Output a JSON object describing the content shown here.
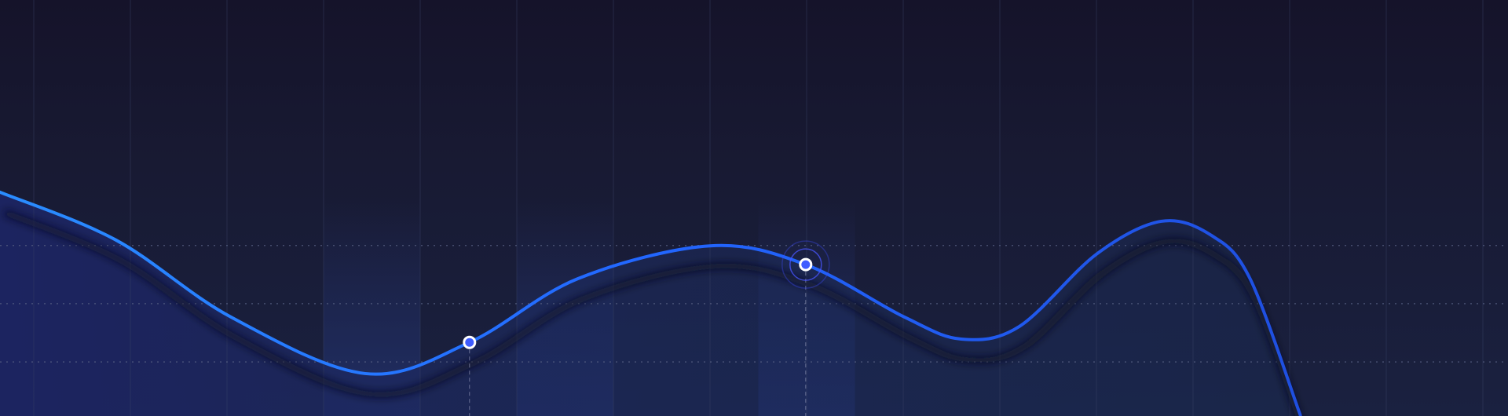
{
  "chart_data": {
    "type": "area",
    "title": "",
    "xlabel": "",
    "ylabel": "",
    "xlim": [
      0,
      15.6
    ],
    "ylim": [
      0,
      100
    ],
    "grid": {
      "vertical": true,
      "horizontal_dotted": true
    },
    "horizontal_gridlines": [
      41,
      27,
      13
    ],
    "highlight_bands": [
      [
        3,
        4
      ],
      [
        5,
        6
      ],
      [
        7.5,
        8.5
      ]
    ],
    "series": [
      {
        "x": [
          0,
          1.2,
          2.39,
          3.78,
          4.86,
          5.98,
          7.35,
          8.34,
          9.36,
          9.95,
          10.55,
          11.35,
          12.02,
          12.54,
          12.94,
          13.46
        ],
        "y": [
          53.8,
          42.3,
          23.8,
          10.2,
          17.7,
          33.0,
          40.9,
          36.4,
          23.8,
          18.5,
          21.5,
          38.9,
          46.8,
          43.4,
          33.0,
          0.2
        ]
      }
    ],
    "markers": [
      {
        "x": 4.86,
        "y": 17.7,
        "style": "point"
      },
      {
        "x": 8.34,
        "y": 36.4,
        "style": "active"
      }
    ],
    "colors": {
      "line_start": "#2a8dff",
      "line_mid": "#2266ff",
      "line_end": "#1f4fe0",
      "fill": "#1d2a6a",
      "marker_fill": "#3f5cff",
      "marker_stroke": "#ffffff",
      "grid": "#3a4266",
      "band": "#22306a"
    }
  }
}
